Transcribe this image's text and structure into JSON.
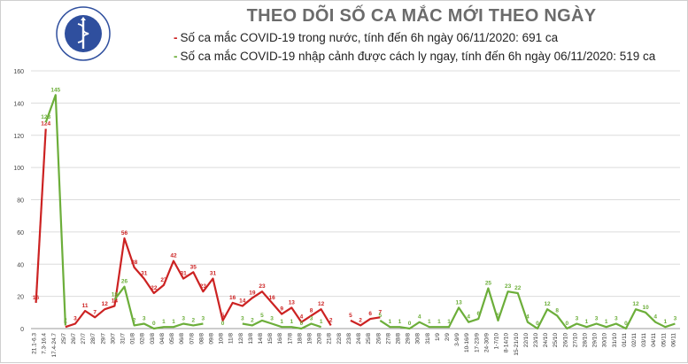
{
  "header": {
    "title": "THEO DÕI SỐ CA MẮC MỚI THEO NGÀY",
    "logo_text_top": "BỘ Y TẾ",
    "logo_text_bottom": "MINISTRY OF HEALTH"
  },
  "legend": [
    {
      "marker": "-",
      "text": "Số ca mắc COVID-19 trong nước, tính đến 6h ngày 06/11/2020: 691 ca",
      "color": "#cc2222"
    },
    {
      "marker": "-",
      "text": "Số ca mắc COVID-19 nhập cảnh được cách ly ngay, tính đến 6h ngày 06/11/2020: 519 ca",
      "color": "#6cae3a"
    }
  ],
  "chart_data": {
    "type": "line",
    "ylim": [
      0,
      160
    ],
    "yticks": [
      0,
      20,
      40,
      60,
      80,
      100,
      120,
      140,
      160
    ],
    "grid": true,
    "categories": [
      "21.1-6.3",
      "7.3-16.4",
      "17.4-24.7",
      "25/7",
      "26/7",
      "27/7",
      "28/7",
      "29/7",
      "30/7",
      "31/7",
      "01/8",
      "02/8",
      "03/8",
      "04/8",
      "05/8",
      "06/8",
      "07/8",
      "08/8",
      "09/8",
      "10/8",
      "11/8",
      "12/8",
      "13/8",
      "14/8",
      "15/8",
      "16/8",
      "17/8",
      "18/8",
      "19/8",
      "20/8",
      "21/8",
      "22/8",
      "23/8",
      "24/8",
      "25/8",
      "26/8",
      "27/8",
      "28/8",
      "29/8",
      "30/8",
      "31/8",
      "1/9",
      "2/9",
      "3-9/9",
      "10-16/9",
      "17-23/9",
      "24-30/9",
      "1-7/10",
      "8-14/10",
      "15-21/10",
      "22/10",
      "23/10",
      "24/10",
      "25/10",
      "26/10",
      "27/10",
      "28/10",
      "29/10",
      "30/10",
      "31/10",
      "01/11",
      "02/11",
      "03/11",
      "04/11",
      "05/11",
      "06/11"
    ],
    "series": [
      {
        "color": "#cc2222",
        "values": [
          16,
          124,
          null,
          1,
          3,
          11,
          7,
          12,
          14,
          56,
          38,
          31,
          22,
          27,
          42,
          31,
          35,
          23,
          31,
          5,
          16,
          14,
          19,
          23,
          16,
          9,
          13,
          4,
          8,
          12,
          2,
          null,
          5,
          2,
          6,
          7,
          null,
          null,
          null,
          null,
          null,
          null,
          null,
          null,
          null,
          null,
          null,
          null,
          null,
          null,
          null,
          null,
          null,
          null,
          null,
          null,
          null,
          null,
          null,
          null,
          null,
          null,
          null,
          null,
          null,
          null
        ]
      },
      {
        "color": "#6cae3a",
        "values": [
          null,
          128,
          145,
          2,
          null,
          null,
          null,
          null,
          18,
          26,
          2,
          3,
          0,
          1,
          1,
          3,
          2,
          3,
          null,
          0,
          null,
          3,
          2,
          5,
          3,
          1,
          1,
          0,
          3,
          1,
          null,
          null,
          null,
          null,
          null,
          5,
          1,
          1,
          0,
          4,
          1,
          1,
          1,
          13,
          4,
          6,
          25,
          5,
          23,
          22,
          4,
          0,
          12,
          8,
          0,
          3,
          1,
          3,
          1,
          3,
          0,
          12,
          10,
          4,
          1,
          3
        ]
      }
    ]
  }
}
